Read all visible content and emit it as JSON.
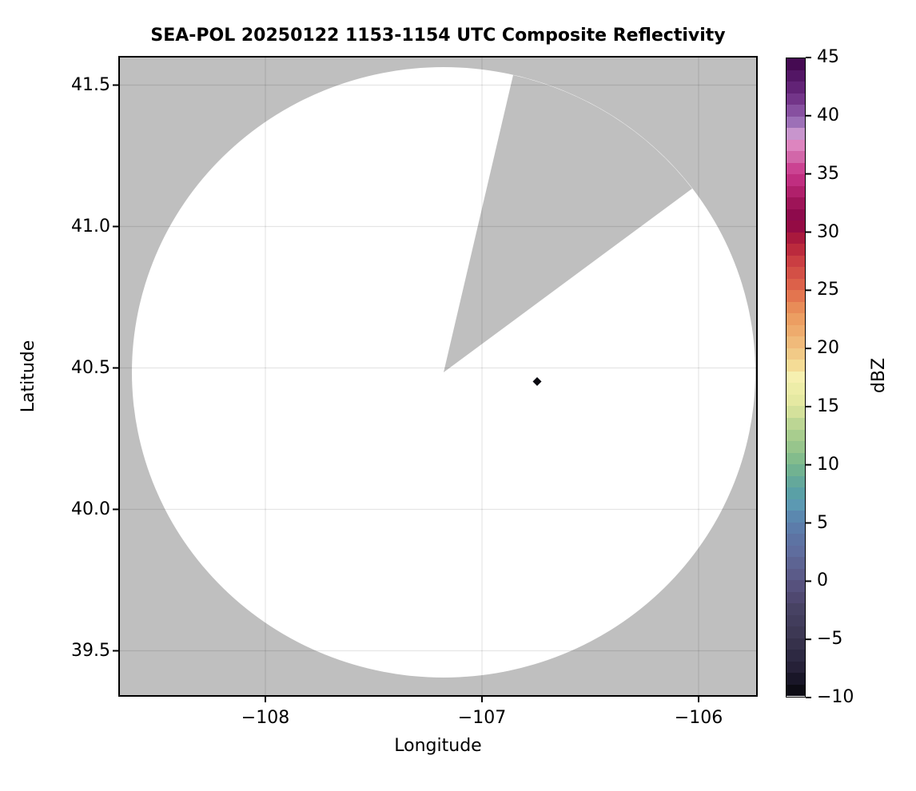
{
  "figure": {
    "title": "SEA-POL 20250122 1153-1154 UTC Composite Reflectivity",
    "background": "#ffffff"
  },
  "map": {
    "xlabel": "Longitude",
    "ylabel": "Latitude",
    "x_tick_labels": [
      "−108",
      "−107",
      "−106"
    ],
    "y_tick_labels": [
      "41.5",
      "41.0",
      "40.5",
      "40.0",
      "39.5"
    ],
    "no_data_color": "#bfbfbf",
    "coverage_color": "#ffffff",
    "grid_color": "rgba(0,0,0,0.10)",
    "echo_marker_color": "#0b0a10"
  },
  "colorbar": {
    "label": "dBZ",
    "tick_labels": [
      "45",
      "40",
      "35",
      "30",
      "25",
      "20",
      "15",
      "10",
      "5",
      "0",
      "−5",
      "−10"
    ],
    "vmin": -10,
    "vmax": 45,
    "steps": 55,
    "anchors": [
      [
        -10,
        "#07060a"
      ],
      [
        -9,
        "#131120"
      ],
      [
        -7.5,
        "#262138"
      ],
      [
        -6.5,
        "#2d2942"
      ],
      [
        -5,
        "#3a3550"
      ],
      [
        -4,
        "#3f3a58"
      ],
      [
        -2.5,
        "#474263"
      ],
      [
        -1.5,
        "#4f4870"
      ],
      [
        0,
        "#595584"
      ],
      [
        1,
        "#5c608d"
      ],
      [
        2.5,
        "#5f6d9e"
      ],
      [
        3.5,
        "#5d73a3"
      ],
      [
        5,
        "#5b80ae"
      ],
      [
        6.5,
        "#5c99b2"
      ],
      [
        7.5,
        "#5aa0a6"
      ],
      [
        8.5,
        "#64a89b"
      ],
      [
        10,
        "#77b78c"
      ],
      [
        11,
        "#8fc18b"
      ],
      [
        12.5,
        "#a8cd8e"
      ],
      [
        13.5,
        "#bcd694"
      ],
      [
        15,
        "#e0e69f"
      ],
      [
        16,
        "#e9eba4"
      ],
      [
        17.5,
        "#f6f0b0"
      ],
      [
        18.5,
        "#f4dc96"
      ],
      [
        20,
        "#f0c180"
      ],
      [
        21,
        "#efb273"
      ],
      [
        22.5,
        "#ec9e62"
      ],
      [
        23.5,
        "#e88c58"
      ],
      [
        25,
        "#e16a4b"
      ],
      [
        26,
        "#d75848"
      ],
      [
        27,
        "#cf4744"
      ],
      [
        28,
        "#c43540"
      ],
      [
        29,
        "#b21f3a"
      ],
      [
        30,
        "#a0123f"
      ],
      [
        30.8,
        "#8c0747"
      ],
      [
        31.5,
        "#8e0a4c"
      ],
      [
        32.5,
        "#9e1458"
      ],
      [
        33.5,
        "#b0206b"
      ],
      [
        34.5,
        "#c02e80"
      ],
      [
        35.5,
        "#cb4392"
      ],
      [
        36.5,
        "#d267a9"
      ],
      [
        37.5,
        "#dd85bf"
      ],
      [
        38.3,
        "#d49dd2"
      ],
      [
        39,
        "#a980c2"
      ],
      [
        40,
        "#9160ab"
      ],
      [
        41,
        "#7d4094"
      ],
      [
        42,
        "#692a7e"
      ],
      [
        43,
        "#5a1c6e"
      ],
      [
        44,
        "#4c0f5b"
      ],
      [
        45,
        "#3d0449"
      ]
    ]
  },
  "chart_data": {
    "type": "heatmap",
    "title": "SEA-POL 20250122 1153-1154 UTC Composite Reflectivity",
    "xlabel": "Longitude",
    "ylabel": "Latitude",
    "xlim": [
      -108.68,
      -105.73
    ],
    "ylim": [
      39.34,
      41.6
    ],
    "x_ticks": [
      -108,
      -107,
      -106
    ],
    "y_ticks": [
      41.5,
      41.0,
      40.5,
      40.0,
      39.5
    ],
    "grid": true,
    "colorbar_label": "dBZ",
    "colorbar_range": [
      -10,
      45
    ],
    "colorbar_ticks": [
      45,
      40,
      35,
      30,
      25,
      20,
      15,
      10,
      5,
      0,
      -5,
      -10
    ],
    "colorbar_position": "right",
    "radar_coverage": {
      "center_lon": -107.18,
      "center_lat": 40.49,
      "radius_deg_lon": 1.44,
      "radius_deg_lat": 1.08,
      "blocked_sector_azimuth_deg": [
        13,
        53
      ],
      "coverage_value": "no echo (white)",
      "outside_value": "no data (gray)"
    },
    "echoes": [
      {
        "lon": -106.75,
        "lat": 40.45,
        "approx_dbz": -10,
        "marker": "diamond"
      }
    ]
  }
}
